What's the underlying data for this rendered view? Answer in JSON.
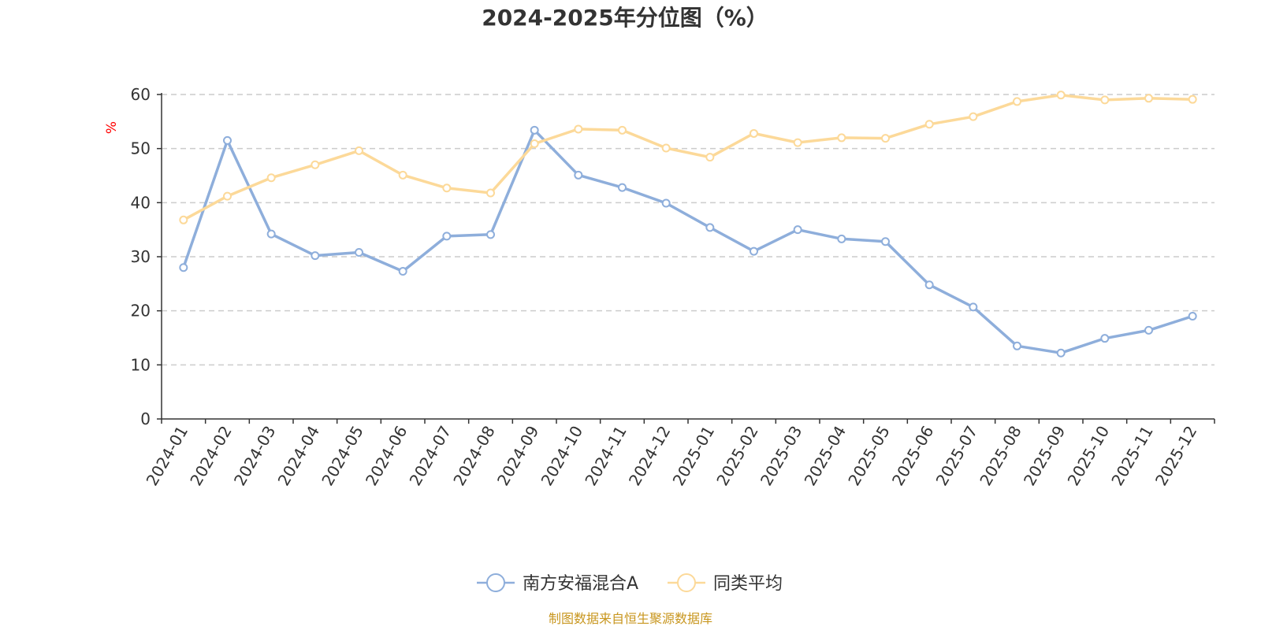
{
  "chart_data": {
    "type": "line",
    "title": "2024-2025年分位图（%）",
    "xlabel": "",
    "ylabel": "%",
    "ylim": [
      0,
      60
    ],
    "yticks": [
      0,
      10,
      20,
      30,
      40,
      50,
      60
    ],
    "grid": true,
    "legend_position": "bottom-center",
    "categories": [
      "2024-01",
      "2024-02",
      "2024-03",
      "2024-04",
      "2024-05",
      "2024-06",
      "2024-07",
      "2024-08",
      "2024-09",
      "2024-10",
      "2024-11",
      "2024-12",
      "2025-01",
      "2025-02",
      "2025-03",
      "2025-04",
      "2025-05",
      "2025-06",
      "2025-07",
      "2025-08",
      "2025-09",
      "2025-10",
      "2025-11",
      "2025-12"
    ],
    "series": [
      {
        "name": "南方安福混合A",
        "color": "#8eaedb",
        "values": [
          28.0,
          51.5,
          34.2,
          30.2,
          30.8,
          27.3,
          33.8,
          34.1,
          53.4,
          45.1,
          42.8,
          39.9,
          35.4,
          31.0,
          35.0,
          33.3,
          32.8,
          24.8,
          20.7,
          13.5,
          12.2,
          14.9,
          16.4,
          19.0
        ]
      },
      {
        "name": "同类平均",
        "color": "#fcd999",
        "values": [
          36.8,
          41.2,
          44.6,
          47.0,
          49.6,
          45.1,
          42.7,
          41.8,
          50.9,
          53.6,
          53.4,
          50.1,
          48.4,
          52.8,
          51.1,
          52.0,
          51.9,
          54.5,
          55.9,
          58.7,
          59.9,
          59.0,
          59.3,
          59.1
        ]
      }
    ],
    "source": "制图数据来自恒生聚源数据库"
  }
}
